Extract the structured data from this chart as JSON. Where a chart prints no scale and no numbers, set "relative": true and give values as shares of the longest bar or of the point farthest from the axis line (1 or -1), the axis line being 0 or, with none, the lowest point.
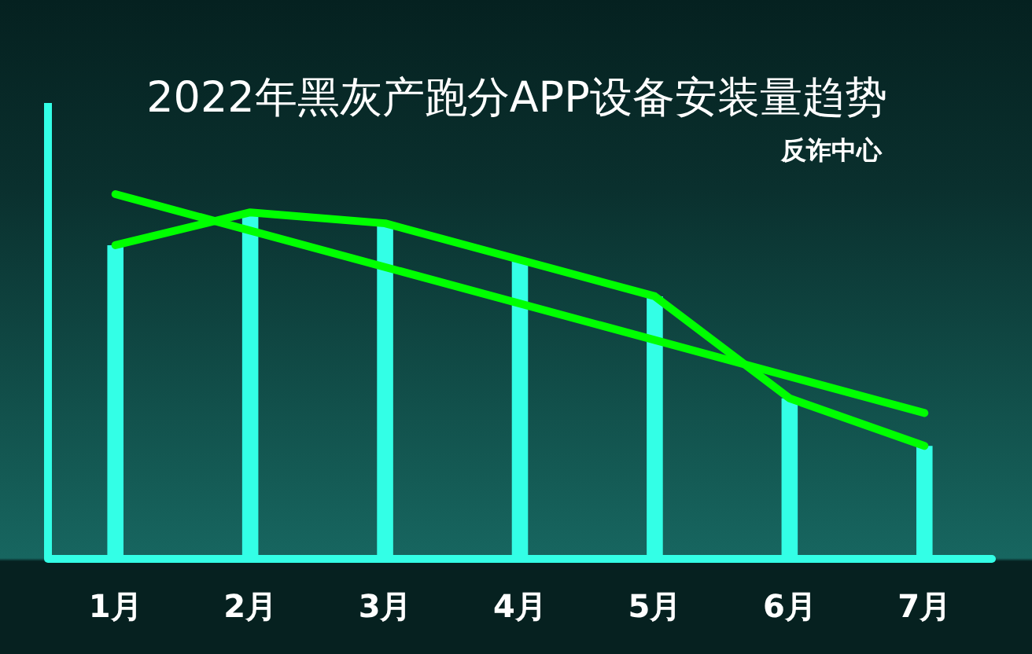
{
  "chart_data": {
    "type": "bar",
    "title": "2022年黑灰产跑分APP设备安装量趋势",
    "subtitle": "反诈中心",
    "categories": [
      "1月",
      "2月",
      "3月",
      "4月",
      "5月",
      "6月",
      "7月"
    ],
    "relative": true,
    "tick_labels": "x",
    "series": [
      {
        "color": "#33ffe6",
        "values": [
          0.86,
          0.95,
          0.92,
          0.82,
          0.72,
          0.44,
          0.31
        ]
      },
      {
        "type": "line",
        "color": "#00ff00",
        "values": [
          0.86,
          0.95,
          0.92,
          0.82,
          0.72,
          0.44,
          0.31
        ]
      },
      {
        "type": "line",
        "color": "#00ff00",
        "x": [
          "1月",
          "7月"
        ],
        "values": [
          1.0,
          0.4
        ]
      }
    ]
  }
}
